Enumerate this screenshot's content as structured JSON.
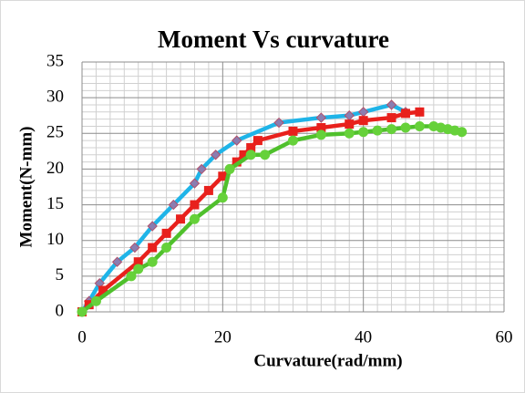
{
  "chart_data": {
    "type": "scatter",
    "title": "Moment Vs curvature",
    "x_label": "Curvature(rad/mm)",
    "y_label": "Moment(N-mm)",
    "xlim": [
      0,
      60
    ],
    "xticks": [
      0,
      20,
      40,
      60
    ],
    "ylim": [
      0,
      35
    ],
    "yticks": [
      0,
      5,
      10,
      15,
      20,
      25,
      30,
      35
    ],
    "grid": true,
    "series": [
      {
        "color": "#1fb4e8",
        "marker": "diamond",
        "marker_color": "#8b7db0",
        "x": [
          0,
          1,
          2.5,
          5,
          7.5,
          10,
          13,
          16,
          17,
          19,
          22,
          28,
          34,
          38,
          40,
          44,
          46
        ],
        "values": [
          0,
          1.5,
          4,
          7,
          9,
          12,
          15,
          18,
          20,
          22,
          24,
          26.5,
          27.2,
          27.5,
          28,
          29,
          28
        ]
      },
      {
        "color": "#e8201c",
        "marker": "square",
        "marker_color": "#e8201c",
        "x": [
          0,
          1,
          3,
          8,
          10,
          12,
          14,
          16,
          18,
          20,
          22,
          23,
          24,
          25,
          30,
          34,
          38,
          40,
          44,
          46,
          48
        ],
        "values": [
          0,
          1,
          3,
          7,
          9,
          11,
          13,
          15,
          17,
          19,
          21,
          22,
          23,
          24,
          25.3,
          25.8,
          26.3,
          26.8,
          27.2,
          27.8,
          28
        ]
      },
      {
        "color": "#4fc02c",
        "marker": "circle",
        "marker_color": "#66d13a",
        "x": [
          0,
          2,
          7,
          8,
          10,
          12,
          16,
          20,
          21,
          24,
          26,
          30,
          34,
          38,
          40,
          42,
          44,
          46,
          48,
          50,
          51,
          52,
          53,
          54
        ],
        "values": [
          0,
          1.5,
          5,
          6,
          7,
          9,
          13,
          16,
          20,
          22,
          22,
          24,
          24.8,
          25,
          25.2,
          25.4,
          25.6,
          25.8,
          26,
          26,
          25.8,
          25.6,
          25.4,
          25.2
        ]
      }
    ]
  }
}
